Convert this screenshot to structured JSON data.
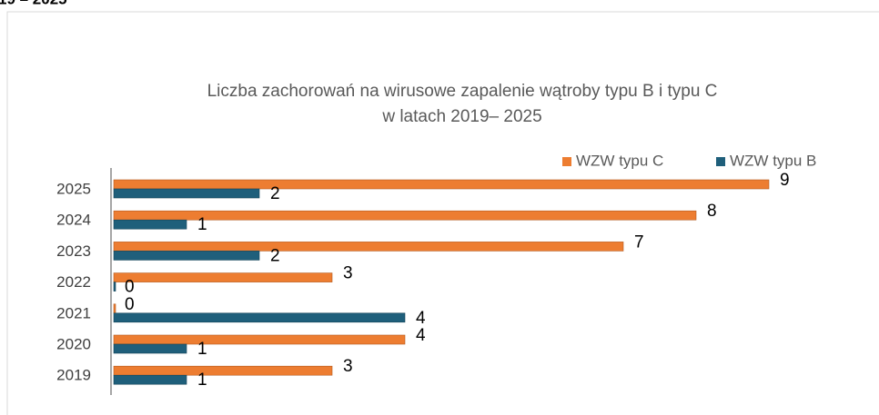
{
  "page_fragment": "19 – 2025",
  "chart_data": {
    "type": "hbar",
    "title": "Liczba zachorowań na wirusowe zapalenie wątroby typu B i typu C",
    "subtitle": "w latach 2019– 2025",
    "categories": [
      "2019",
      "2020",
      "2021",
      "2022",
      "2023",
      "2024",
      "2025"
    ],
    "series": [
      {
        "name": "WZW typu C",
        "color": "#ed7d31",
        "values": [
          3,
          4,
          0,
          3,
          7,
          8,
          9
        ]
      },
      {
        "name": "WZW typu B",
        "color": "#1f5f7b",
        "values": [
          1,
          1,
          4,
          0,
          2,
          1,
          2
        ]
      }
    ],
    "xlim": [
      0,
      10
    ],
    "legend": "top-right"
  }
}
